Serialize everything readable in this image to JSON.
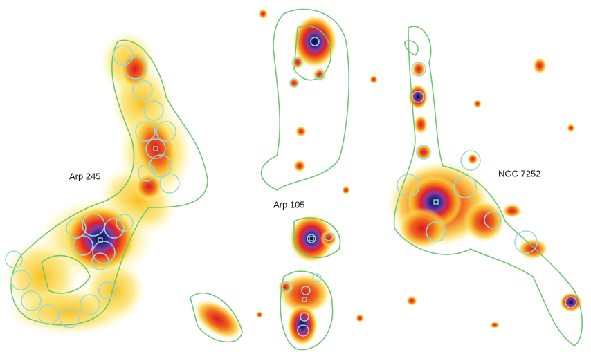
{
  "labels": [
    "Arp 245",
    "Arp 105",
    "NGC 7252"
  ]
}
